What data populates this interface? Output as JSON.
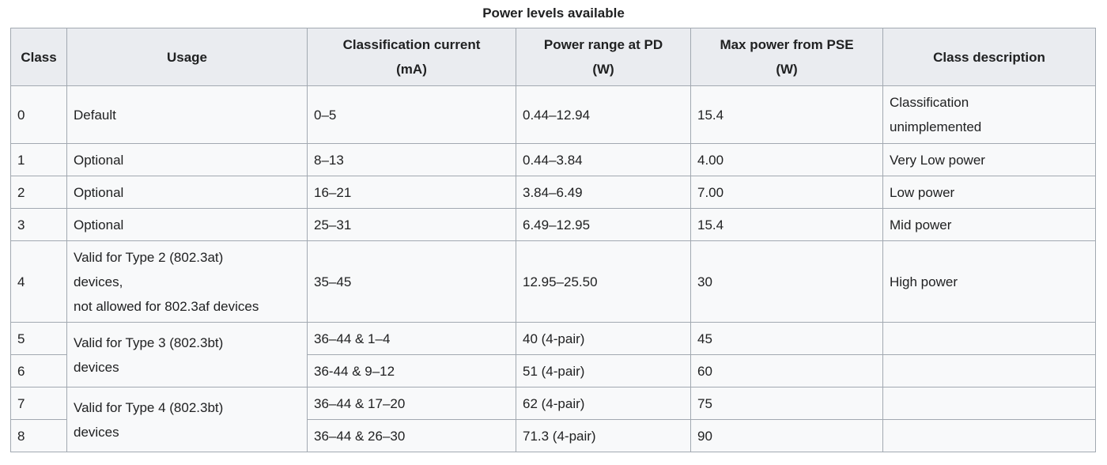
{
  "caption": "Power levels available",
  "headers": {
    "class": "Class",
    "usage": "Usage",
    "current_l1": "Classification current",
    "current_l2": "(mA)",
    "range_l1": "Power range at PD",
    "range_l2": "(W)",
    "max_l1": "Max power from PSE",
    "max_l2": "(W)",
    "desc": "Class description"
  },
  "rows": [
    {
      "class": "0",
      "usage": "Default",
      "current": "0–5",
      "range": "0.44–12.94",
      "max": "15.4",
      "desc_l1": "Classification",
      "desc_l2": "unimplemented"
    },
    {
      "class": "1",
      "usage": "Optional",
      "current": "8–13",
      "range": "0.44–3.84",
      "max": "4.00",
      "desc": "Very Low power"
    },
    {
      "class": "2",
      "usage": "Optional",
      "current": "16–21",
      "range": "3.84–6.49",
      "max": "7.00",
      "desc": "Low power"
    },
    {
      "class": "3",
      "usage": "Optional",
      "current": "25–31",
      "range": "6.49–12.95",
      "max": "15.4",
      "desc": "Mid power"
    },
    {
      "class": "4",
      "usage_l1": "Valid for Type 2 (802.3at)",
      "usage_l2": "devices,",
      "usage_l3": "not allowed for 802.3af devices",
      "current": "35–45",
      "range": "12.95–25.50",
      "max": "30",
      "desc": "High power"
    },
    {
      "class": "5",
      "current": "36–44 & 1–4",
      "range": "40 (4-pair)",
      "max": "45",
      "desc": ""
    },
    {
      "class": "6",
      "current": "36-44 & 9–12",
      "range": "51 (4-pair)",
      "max": "60",
      "desc": ""
    },
    {
      "class": "7",
      "current": "36–44 & 17–20",
      "range": "62 (4-pair)",
      "max": "75",
      "desc": ""
    },
    {
      "class": "8",
      "current": "36–44 & 26–30",
      "range": "71.3 (4-pair)",
      "max": "90",
      "desc": ""
    }
  ],
  "merged": {
    "type3_l1": "Valid for Type 3 (802.3bt)",
    "type3_l2": "devices",
    "type4_l1": "Valid for Type 4 (802.3bt)",
    "type4_l2": "devices"
  }
}
